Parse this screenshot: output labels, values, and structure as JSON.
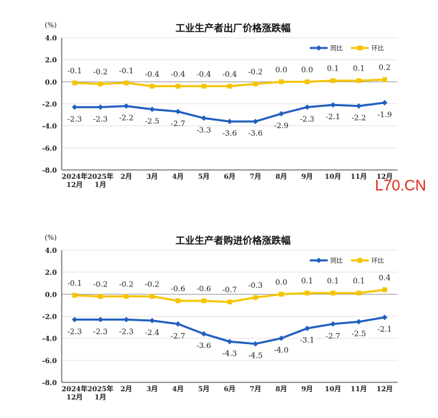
{
  "watermark": "L70.CN",
  "series_colors": {
    "yoy": "#1f5fbf",
    "mom": "#f5c400"
  },
  "chart_data": [
    {
      "type": "line",
      "title": "工业生产者出厂价格涨跌幅",
      "ylabel": "(%)",
      "ylim": [
        -8.0,
        4.0
      ],
      "yticks": [
        "4.0",
        "2.0",
        "0.0",
        "-2.0",
        "-4.0",
        "-6.0",
        "-8.0"
      ],
      "categories": [
        "2024年12月",
        "2025年1月",
        "2月",
        "3月",
        "4月",
        "5月",
        "6月",
        "7月",
        "8月",
        "9月",
        "10月",
        "11月",
        "12月"
      ],
      "x_labels": [
        [
          "2024年",
          "12月"
        ],
        [
          "2025年",
          "1月"
        ],
        [
          "2月"
        ],
        [
          "3月"
        ],
        [
          "4月"
        ],
        [
          "5月"
        ],
        [
          "6月"
        ],
        [
          "7月"
        ],
        [
          "8月"
        ],
        [
          "9月"
        ],
        [
          "10月"
        ],
        [
          "11月"
        ],
        [
          "12月"
        ]
      ],
      "legend": "top-right",
      "series": [
        {
          "name": "同比",
          "values": [
            -2.3,
            -2.3,
            -2.2,
            -2.5,
            -2.7,
            -3.3,
            -3.6,
            -3.6,
            -2.9,
            -2.3,
            -2.1,
            -2.2,
            -1.9
          ],
          "labels": [
            "-2.3",
            "-2.3",
            "-2.2",
            "-2.5",
            "-2.7",
            "-3.3",
            "-3.6",
            "-3.6",
            "-2.9",
            "-2.3",
            "-2.1",
            "-2.2",
            "-1.9"
          ]
        },
        {
          "name": "环比",
          "values": [
            -0.1,
            -0.2,
            -0.1,
            -0.4,
            -0.4,
            -0.4,
            -0.4,
            -0.2,
            0.0,
            0.0,
            0.1,
            0.1,
            0.2
          ],
          "labels": [
            "-0.1",
            "-0.2",
            "-0.1",
            "-0.4",
            "-0.4",
            "-0.4",
            "-0.4",
            "-0.2",
            "0.0",
            "0.0",
            "0.1",
            "0.1",
            "0.2"
          ]
        }
      ]
    },
    {
      "type": "line",
      "title": "工业生产者购进价格涨跌幅",
      "ylabel": "(%)",
      "ylim": [
        -8.0,
        4.0
      ],
      "yticks": [
        "4.0",
        "2.0",
        "0.0",
        "-2.0",
        "-4.0",
        "-6.0",
        "-8.0"
      ],
      "categories": [
        "2024年12月",
        "2025年1月",
        "2月",
        "3月",
        "4月",
        "5月",
        "6月",
        "7月",
        "8月",
        "9月",
        "10月",
        "11月",
        "12月"
      ],
      "x_labels": [
        [
          "2024年",
          "12月"
        ],
        [
          "2025年",
          "1月"
        ],
        [
          "2月"
        ],
        [
          "3月"
        ],
        [
          "4月"
        ],
        [
          "5月"
        ],
        [
          "6月"
        ],
        [
          "7月"
        ],
        [
          "8月"
        ],
        [
          "9月"
        ],
        [
          "10月"
        ],
        [
          "11月"
        ],
        [
          "12月"
        ]
      ],
      "legend": "top-right",
      "series": [
        {
          "name": "同比",
          "values": [
            -2.3,
            -2.3,
            -2.3,
            -2.4,
            -2.7,
            -3.6,
            -4.3,
            -4.5,
            -4.0,
            -3.1,
            -2.7,
            -2.5,
            -2.1
          ],
          "labels": [
            "-2.3",
            "-2.3",
            "-2.3",
            "-2.4",
            "-2.7",
            "-3.6",
            "-4.3",
            "-4.5",
            "-4.0",
            "-3.1",
            "-2.7",
            "-2.5",
            "-2.1"
          ]
        },
        {
          "name": "环比",
          "values": [
            -0.1,
            -0.2,
            -0.2,
            -0.2,
            -0.6,
            -0.6,
            -0.7,
            -0.3,
            0.0,
            0.1,
            0.1,
            0.1,
            0.4
          ],
          "labels": [
            "-0.1",
            "-0.2",
            "-0.2",
            "-0.2",
            "-0.6",
            "-0.6",
            "-0.7",
            "-0.3",
            "0.0",
            "0.1",
            "0.1",
            "0.1",
            "0.4"
          ]
        }
      ]
    }
  ]
}
